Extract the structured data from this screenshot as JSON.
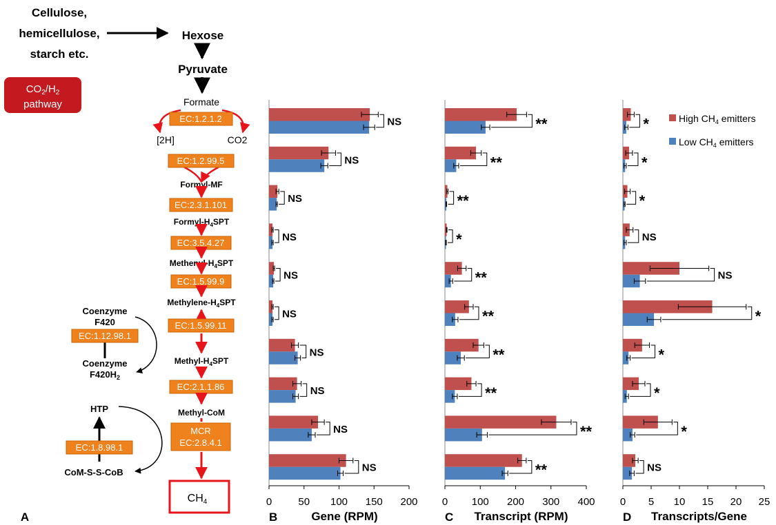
{
  "pathway": {
    "top_input_lines": [
      "Cellulose,",
      "hemicellulose,",
      "starch etc."
    ],
    "hexose": "Hexose",
    "pyruvate": "Pyruvate",
    "badge_line1": "CO",
    "badge_sub1": "2",
    "badge_line1b": "/H",
    "badge_sub2": "2",
    "badge_line2": "pathway",
    "formate": "Formate",
    "h2": "[2H]",
    "co2": "CO2",
    "enzymes": [
      "EC:1.2.1.2",
      "EC:1.2.99.5",
      "EC:2.3.1.101",
      "EC:3.5.4.27",
      "EC:1.5.99.9",
      "EC:1.5.99.11",
      "EC:2.1.1.86"
    ],
    "mcr_line1": "MCR",
    "mcr_line2": "EC:2.8.4.1",
    "intermediates": [
      {
        "main": "Formyl-MF",
        "sub": "",
        "rest": ""
      },
      {
        "main": "Formyl-H",
        "sub": "4",
        "rest": "SPT"
      },
      {
        "main": "Methenyl-H",
        "sub": "4",
        "rest": "SPT"
      },
      {
        "main": "Methylene-H",
        "sub": "4",
        "rest": "SPT"
      },
      {
        "main": "Methyl-H",
        "sub": "4",
        "rest": "SPT"
      },
      {
        "main": "Methyl-CoM",
        "sub": "",
        "rest": ""
      }
    ],
    "ch4_main": "CH",
    "ch4_sub": "4",
    "coenzyme_top_1": "Coenzyme",
    "coenzyme_top_2": "F420",
    "coenzyme_ec": "EC:1.12.98.1",
    "coenzyme_bot_1": "Coenzyme",
    "coenzyme_bot_2": "F420H",
    "coenzyme_bot_sub": "2",
    "htp": "HTP",
    "htp_ec": "EC:1.8.98.1",
    "coms": "CoM-S-S-CoB",
    "panel_label": "A"
  },
  "chart_data": [
    {
      "type": "bar",
      "orientation": "horizontal",
      "panel": "B",
      "xlabel": "Gene (RPM)",
      "xlim": [
        0,
        200
      ],
      "xticks": [
        0,
        50,
        100,
        150,
        200
      ],
      "series": [
        {
          "name": "High CH4 emitters",
          "color": "#c0504d",
          "values": [
            144,
            85,
            12,
            5,
            7,
            5,
            37,
            40,
            70,
            110
          ],
          "errors": [
            12,
            10,
            2,
            1,
            1,
            1,
            5,
            6,
            9,
            10
          ]
        },
        {
          "name": "Low CH4 emitters",
          "color": "#4f81bd",
          "values": [
            143,
            79,
            11,
            5,
            6,
            5,
            41,
            38,
            61,
            102
          ],
          "errors": [
            8,
            5,
            1,
            1,
            1,
            1,
            4,
            4,
            5,
            4
          ]
        }
      ],
      "significance": [
        "NS",
        "NS",
        "NS",
        "NS",
        "NS",
        "NS",
        "NS",
        "NS",
        "NS",
        "NS"
      ]
    },
    {
      "type": "bar",
      "orientation": "horizontal",
      "panel": "C",
      "xlabel": "Transcript (RPM)",
      "xlim": [
        0,
        400
      ],
      "xticks": [
        0,
        100,
        200,
        300,
        400
      ],
      "series": [
        {
          "name": "High CH4 emitters",
          "color": "#c0504d",
          "values": [
            203,
            88,
            7,
            5,
            48,
            68,
            95,
            75,
            315,
            218
          ],
          "errors": [
            28,
            15,
            2,
            1,
            12,
            12,
            15,
            13,
            42,
            12
          ]
        },
        {
          "name": "Low CH4 emitters",
          "color": "#4f81bd",
          "values": [
            115,
            32,
            4,
            3,
            17,
            29,
            45,
            28,
            105,
            170
          ],
          "errors": [
            12,
            7,
            1,
            1,
            5,
            8,
            10,
            7,
            15,
            8
          ]
        }
      ],
      "significance": [
        "**",
        "**",
        "**",
        "*",
        "**",
        "**",
        "**",
        "**",
        "**",
        "**"
      ]
    },
    {
      "type": "bar",
      "orientation": "horizontal",
      "panel": "D",
      "xlabel": "Transcripts/Gene",
      "xlim": [
        0,
        25
      ],
      "xticks": [
        0,
        5,
        10,
        15,
        20,
        25
      ],
      "series": [
        {
          "name": "High CH4 emitters",
          "color": "#c0504d",
          "values": [
            1.4,
            1.1,
            0.8,
            1.2,
            10,
            15.8,
            3.4,
            2.8,
            6.2,
            2.2
          ],
          "errors": [
            0.6,
            0.6,
            0.5,
            0.6,
            5.2,
            6,
            1.3,
            1.1,
            2.5,
            0.5
          ]
        },
        {
          "name": "Low CH4 emitters",
          "color": "#4f81bd",
          "values": [
            0.6,
            0.4,
            0.3,
            0.4,
            3,
            5.5,
            1,
            0.7,
            1.7,
            1.6
          ],
          "errors": [
            0.3,
            0.2,
            0.1,
            0.2,
            1,
            1.2,
            0.3,
            0.3,
            0.4,
            0.4
          ]
        }
      ],
      "significance": [
        "*",
        "*",
        "*",
        "NS",
        "NS",
        "*",
        "*",
        "*",
        "*",
        "NS"
      ]
    }
  ],
  "legend": {
    "high_pre": "High CH",
    "high_sub": "4",
    "high_post": " emitters",
    "low_pre": "Low CH",
    "low_sub": "4",
    "low_post": " emitters",
    "placement": "top-right"
  }
}
